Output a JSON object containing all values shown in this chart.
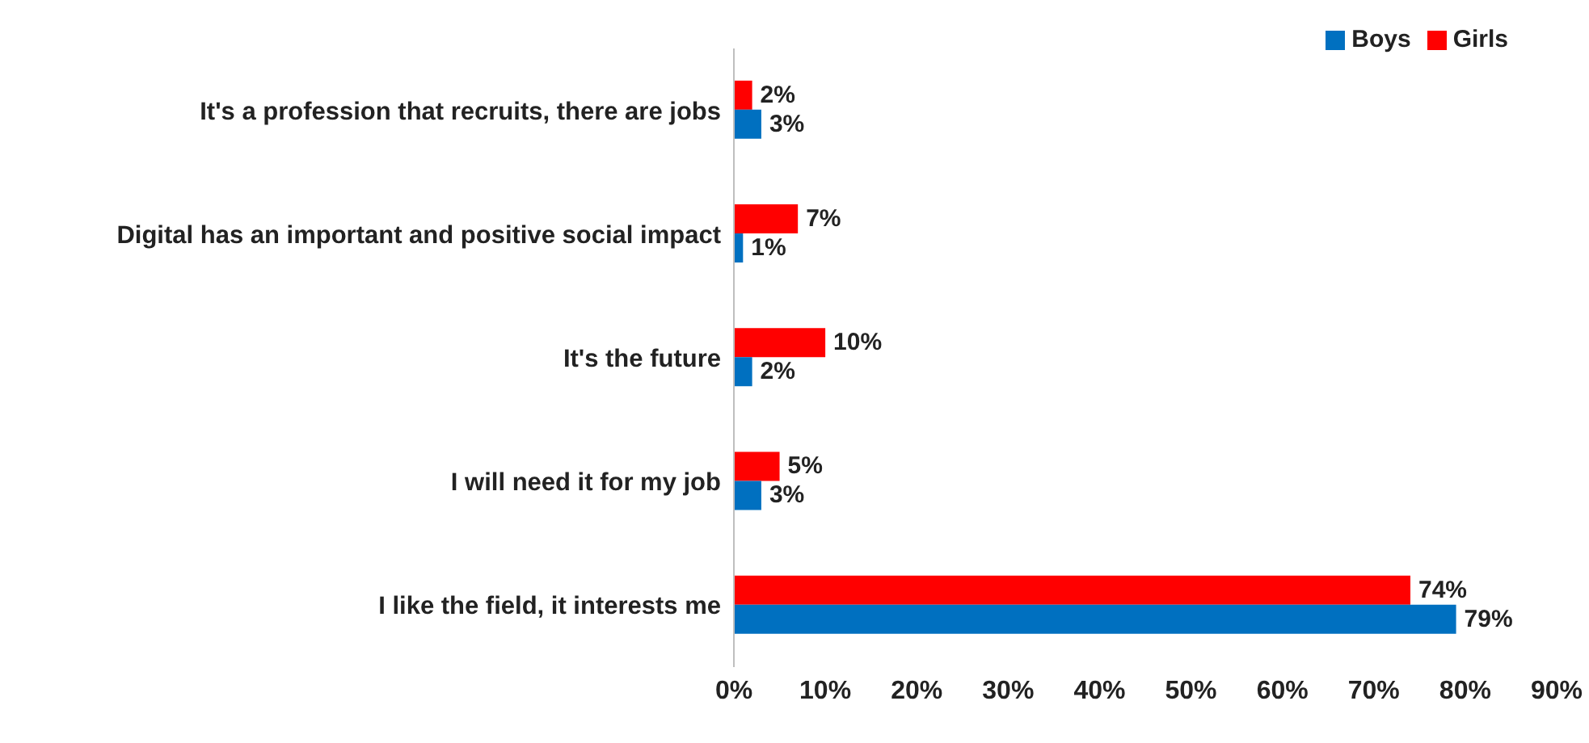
{
  "chart_data": {
    "type": "bar",
    "orientation": "horizontal",
    "categories": [
      "It's a profession that recruits, there are jobs",
      "Digital has an important and positive social impact",
      "It's the future",
      "I will need it for my job",
      "I like the field, it interests me"
    ],
    "series": [
      {
        "name": "Girls",
        "color": "#ff0000",
        "values": [
          2,
          7,
          10,
          5,
          74
        ],
        "value_labels": [
          "2%",
          "7%",
          "10%",
          "5%",
          "74%"
        ]
      },
      {
        "name": "Boys",
        "color": "#0070c0",
        "values": [
          3,
          1,
          2,
          3,
          79
        ],
        "value_labels": [
          "3%",
          "1%",
          "2%",
          "3%",
          "79%"
        ]
      }
    ],
    "xlim": [
      0,
      90
    ],
    "xticks": [
      {
        "value": 0,
        "label": "0%"
      },
      {
        "value": 10,
        "label": "10%"
      },
      {
        "value": 20,
        "label": "20%"
      },
      {
        "value": 30,
        "label": "30%"
      },
      {
        "value": 40,
        "label": "40%"
      },
      {
        "value": 50,
        "label": "50%"
      },
      {
        "value": 60,
        "label": "60%"
      },
      {
        "value": 70,
        "label": "70%"
      },
      {
        "value": 80,
        "label": "80%"
      },
      {
        "value": 90,
        "label": "90%"
      }
    ],
    "grid": false,
    "legend": "top right"
  }
}
